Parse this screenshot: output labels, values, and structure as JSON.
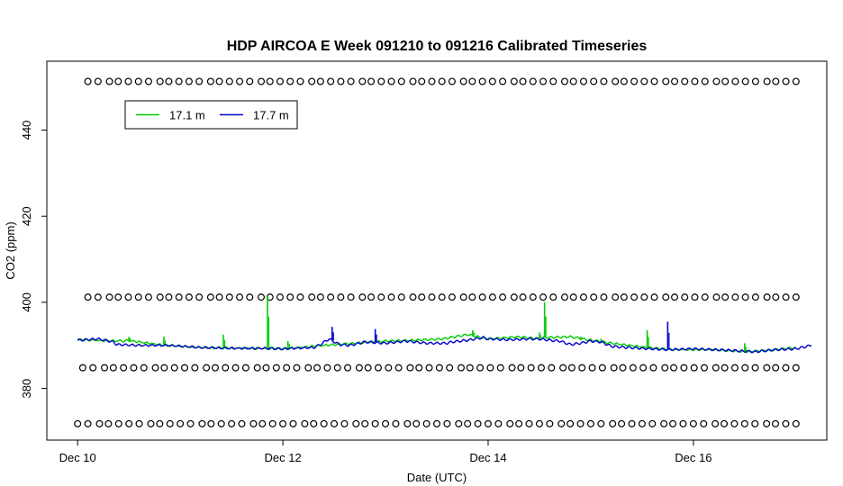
{
  "chart_data": {
    "type": "line",
    "title": "HDP AIRCOA E  Week 091210 to 091216  Calibrated Timeseries",
    "xlabel": "Date (UTC)",
    "ylabel": "CO2 (ppm)",
    "x_ticks": [
      {
        "x": 10,
        "label": "Dec 10"
      },
      {
        "x": 12,
        "label": "Dec 12"
      },
      {
        "x": 14,
        "label": "Dec 14"
      },
      {
        "x": 16,
        "label": "Dec 16"
      }
    ],
    "y_ticks": [
      380,
      400,
      420,
      440
    ],
    "xlim": [
      9.7,
      17.3
    ],
    "ylim": [
      368,
      456
    ],
    "grid": false,
    "legend_position": "top-left",
    "series": [
      {
        "name": "17.1 m",
        "style": "line",
        "color": "#00cc00",
        "points": [
          [
            10.0,
            391.3
          ],
          [
            10.4,
            391.0
          ],
          [
            10.5,
            391.1
          ],
          [
            10.85,
            390.0
          ],
          [
            11.2,
            389.5
          ],
          [
            11.45,
            389.4
          ],
          [
            11.85,
            389.3
          ],
          [
            12.0,
            389.2
          ],
          [
            12.4,
            390.0
          ],
          [
            12.7,
            390.5
          ],
          [
            13.0,
            391.0
          ],
          [
            13.3,
            391.2
          ],
          [
            13.55,
            391.5
          ],
          [
            13.8,
            392.5
          ],
          [
            14.0,
            391.5
          ],
          [
            14.3,
            392.0
          ],
          [
            14.5,
            391.5
          ],
          [
            14.55,
            391.8
          ],
          [
            14.8,
            392.0
          ],
          [
            15.0,
            391.2
          ],
          [
            15.2,
            390.5
          ],
          [
            15.55,
            389.5
          ],
          [
            15.8,
            389.0
          ],
          [
            16.2,
            389.0
          ],
          [
            16.5,
            388.5
          ],
          [
            16.8,
            389.0
          ],
          [
            17.0,
            389.5
          ]
        ],
        "spikes": [
          [
            10.5,
            392.0
          ],
          [
            10.84,
            392.0
          ],
          [
            11.42,
            392.5
          ],
          [
            11.85,
            401.5
          ],
          [
            12.05,
            391.0
          ],
          [
            13.85,
            393.5
          ],
          [
            14.5,
            393.0
          ],
          [
            14.55,
            400.0
          ],
          [
            14.9,
            392.0
          ],
          [
            15.1,
            391.5
          ],
          [
            15.55,
            393.5
          ],
          [
            16.5,
            390.5
          ]
        ]
      },
      {
        "name": "17.7 m",
        "style": "line",
        "color": "#0000cc",
        "points": [
          [
            10.0,
            391.2
          ],
          [
            10.2,
            391.5
          ],
          [
            10.35,
            390.8
          ],
          [
            10.38,
            390.2
          ],
          [
            10.6,
            390.0
          ],
          [
            10.9,
            390.0
          ],
          [
            11.2,
            389.5
          ],
          [
            11.5,
            389.3
          ],
          [
            11.85,
            389.3
          ],
          [
            12.0,
            389.2
          ],
          [
            12.3,
            389.5
          ],
          [
            12.35,
            390.0
          ],
          [
            12.45,
            391.5
          ],
          [
            12.55,
            390.2
          ],
          [
            12.65,
            390.0
          ],
          [
            12.8,
            390.8
          ],
          [
            13.0,
            390.5
          ],
          [
            13.2,
            391.0
          ],
          [
            13.4,
            390.5
          ],
          [
            13.6,
            390.5
          ],
          [
            13.65,
            390.8
          ],
          [
            13.8,
            391.2
          ],
          [
            13.95,
            391.8
          ],
          [
            14.0,
            391.5
          ],
          [
            14.2,
            391.3
          ],
          [
            14.4,
            391.5
          ],
          [
            14.5,
            391.5
          ],
          [
            14.6,
            391.2
          ],
          [
            14.7,
            391.0
          ],
          [
            14.8,
            390.2
          ],
          [
            14.9,
            390.5
          ],
          [
            15.0,
            391.0
          ],
          [
            15.1,
            390.8
          ],
          [
            15.2,
            389.8
          ],
          [
            15.35,
            389.5
          ],
          [
            15.5,
            389.3
          ],
          [
            15.75,
            389.0
          ],
          [
            16.0,
            389.2
          ],
          [
            16.2,
            389.0
          ],
          [
            16.4,
            388.8
          ],
          [
            16.6,
            388.5
          ],
          [
            16.8,
            389.0
          ],
          [
            17.0,
            389.2
          ],
          [
            17.15,
            390.0
          ]
        ],
        "spikes": [
          [
            12.48,
            394.3
          ],
          [
            12.9,
            393.8
          ],
          [
            15.75,
            395.5
          ]
        ]
      },
      {
        "name": "",
        "style": "points",
        "color": "#000000",
        "points": [
          [
            10.1,
            451.3
          ],
          [
            17.0,
            451.3
          ],
          [
            10.1,
            401.2
          ],
          [
            17.0,
            401.2
          ],
          [
            10.05,
            384.8
          ],
          [
            17.0,
            384.8
          ],
          [
            10.0,
            371.8
          ],
          [
            17.0,
            371.8
          ]
        ]
      }
    ]
  }
}
